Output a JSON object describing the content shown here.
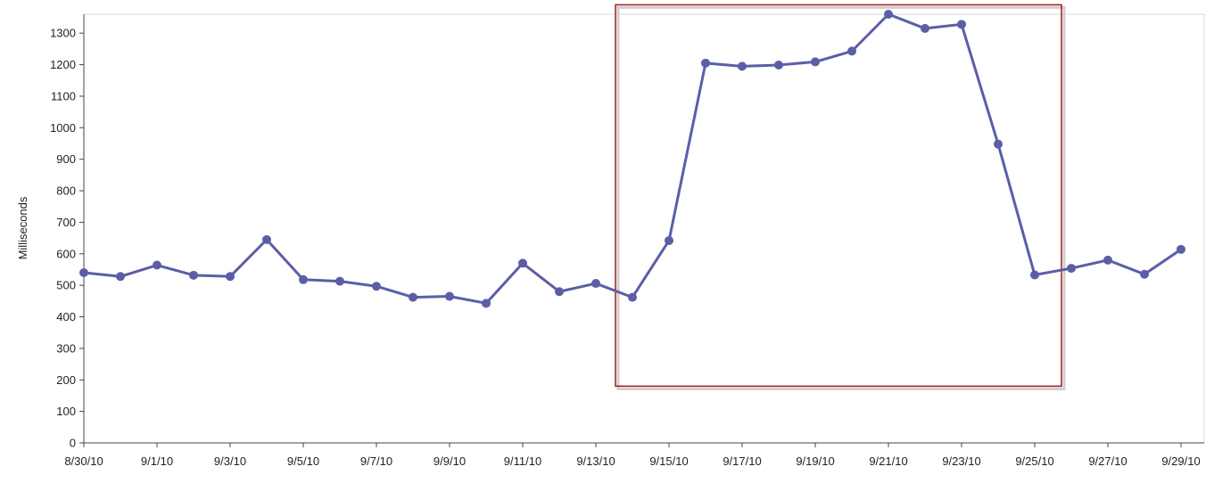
{
  "chart_data": {
    "type": "line",
    "title": "",
    "xlabel": "",
    "ylabel": "Milliseconds",
    "ylim": [
      0,
      1360
    ],
    "y_ticks": [
      0,
      100,
      200,
      300,
      400,
      500,
      600,
      700,
      800,
      900,
      1000,
      1100,
      1200,
      1300
    ],
    "x_tick_labels": [
      "8/30/10",
      "9/1/10",
      "9/3/10",
      "9/5/10",
      "9/7/10",
      "9/9/10",
      "9/11/10",
      "9/13/10",
      "9/15/10",
      "9/17/10",
      "9/19/10",
      "9/21/10",
      "9/23/10",
      "9/25/10",
      "9/27/10",
      "9/29/10"
    ],
    "grid": false,
    "legend": "none",
    "colors": {
      "series": "#5b5ea6",
      "highlight_box": "#a31b1b"
    },
    "series": [
      {
        "x": [
          "8/30/10",
          "8/31/10",
          "9/1/10",
          "9/2/10",
          "9/3/10",
          "9/4/10",
          "9/5/10",
          "9/6/10",
          "9/7/10",
          "9/8/10",
          "9/9/10",
          "9/10/10",
          "9/11/10",
          "9/12/10",
          "9/13/10",
          "9/14/10",
          "9/15/10",
          "9/16/10",
          "9/17/10",
          "9/18/10",
          "9/19/10",
          "9/20/10",
          "9/21/10",
          "9/22/10",
          "9/23/10",
          "9/24/10",
          "9/25/10",
          "9/26/10",
          "9/27/10",
          "9/28/10",
          "9/29/10"
        ],
        "values": [
          540,
          528,
          564,
          532,
          528,
          645,
          518,
          513,
          497,
          462,
          465,
          443,
          570,
          480,
          506,
          462,
          642,
          1205,
          1195,
          1199,
          1209,
          1243,
          1360,
          1315,
          1328,
          948,
          533,
          554,
          580,
          535,
          614
        ]
      }
    ],
    "annotations": [
      {
        "type": "highlight-box",
        "x_range": [
          "9/13/10",
          "9/25/10"
        ],
        "y_range": [
          180,
          1390
        ]
      }
    ]
  }
}
